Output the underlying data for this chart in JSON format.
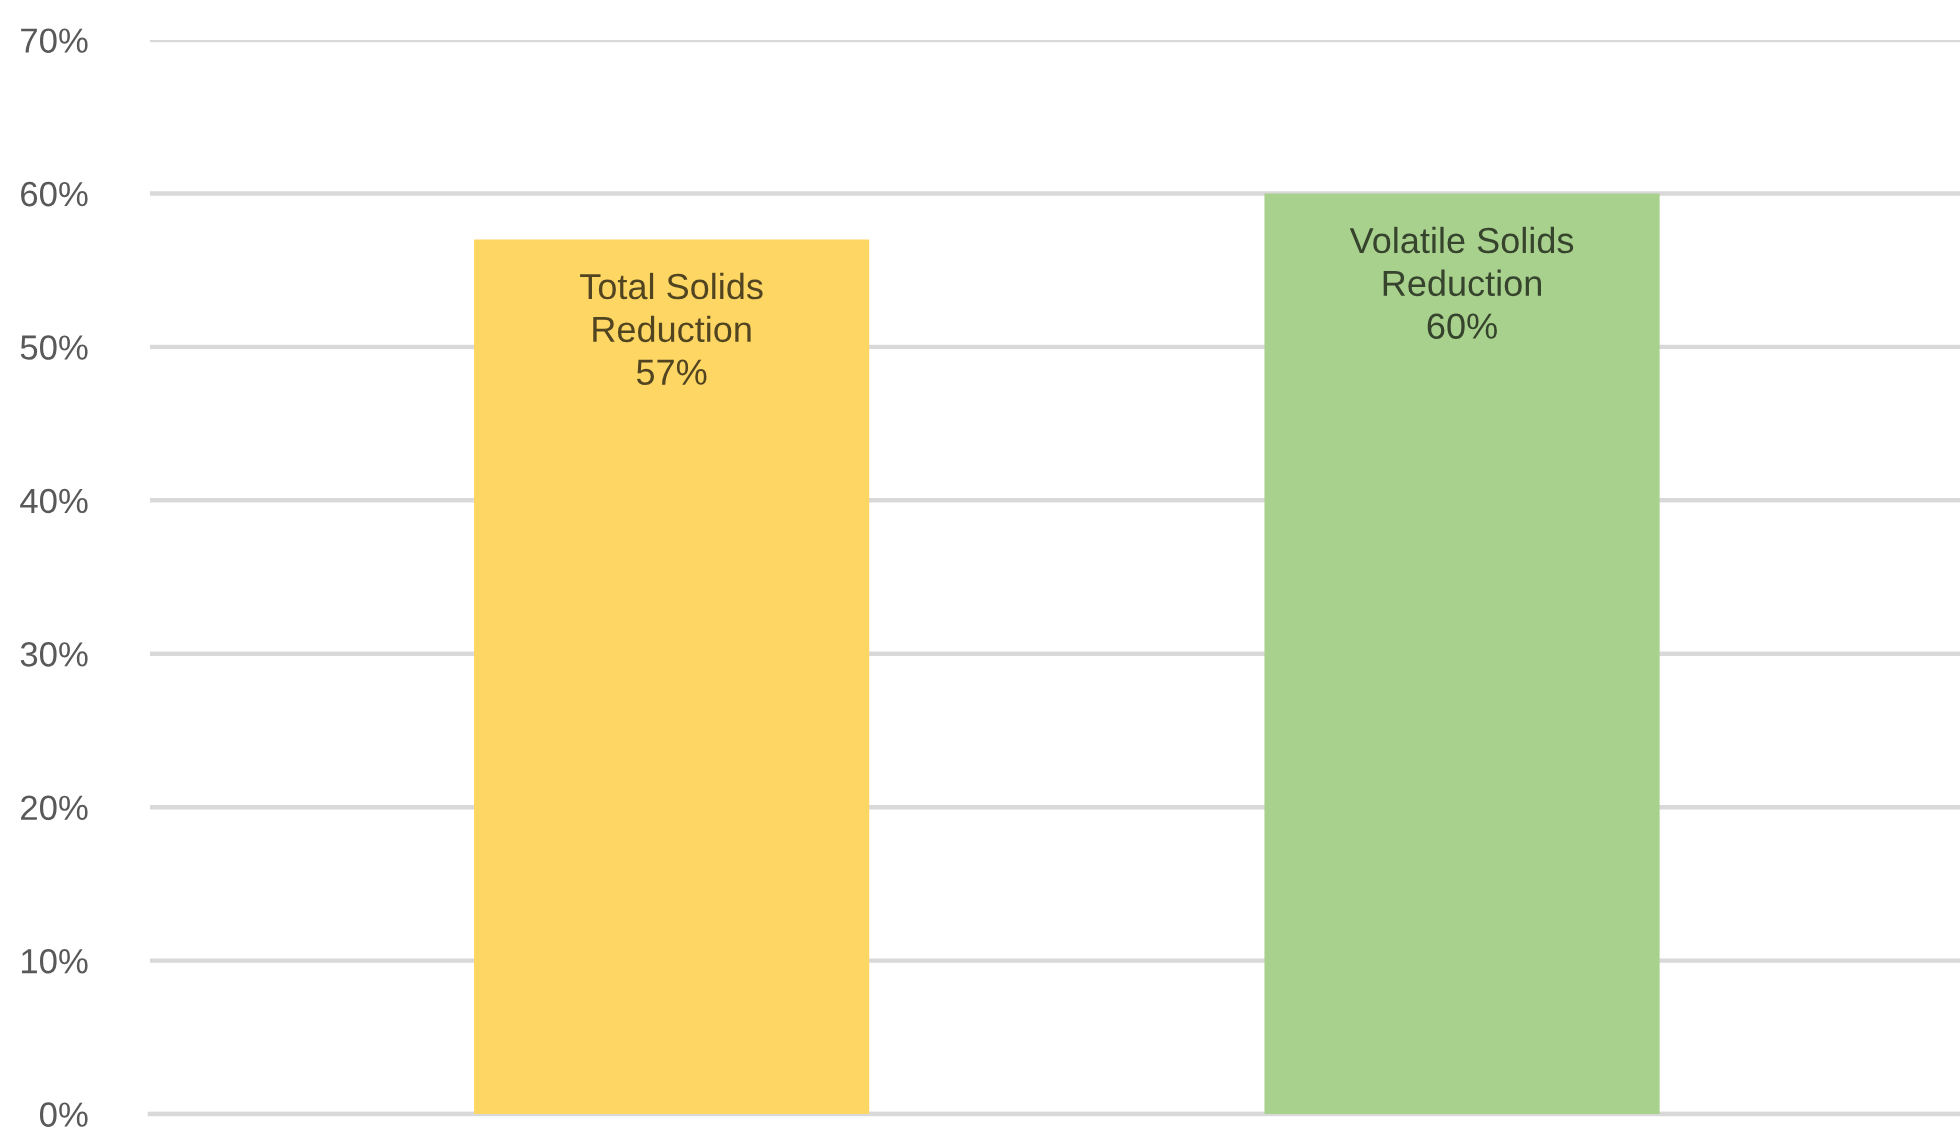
{
  "chart_data": {
    "type": "bar",
    "categories": [
      "Total Solids\nReduction",
      "Volatile Solids\nReduction"
    ],
    "values": [
      57,
      60
    ],
    "colors": [
      "#fdd663",
      "#a9d18e"
    ],
    "value_labels": [
      "57%",
      "60%"
    ],
    "ylim": [
      0,
      70
    ],
    "yticks": [
      {
        "value": 0,
        "label": "0%"
      },
      {
        "value": 10,
        "label": "10%"
      },
      {
        "value": 20,
        "label": "20%"
      },
      {
        "value": 30,
        "label": "30%"
      },
      {
        "value": 40,
        "label": "40%"
      },
      {
        "value": 50,
        "label": "50%"
      },
      {
        "value": 60,
        "label": "60%"
      },
      {
        "value": 70,
        "label": "70%"
      }
    ],
    "grid": "y",
    "legend": false
  }
}
